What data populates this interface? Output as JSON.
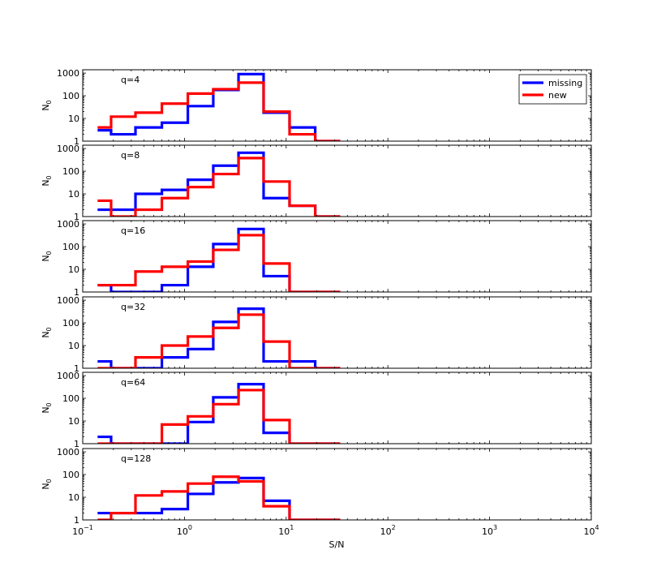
{
  "chart_data": {
    "type": "step-histogram",
    "xlabel": "S/N",
    "ylabel_base": "N",
    "ylabel_sub": "0",
    "xscale": "log",
    "yscale": "log",
    "xlim": [
      0.1,
      10000
    ],
    "ylim": [
      1,
      1400
    ],
    "x_ticks": [
      {
        "value": 0.1,
        "base": "10",
        "exp": "−1"
      },
      {
        "value": 1,
        "base": "10",
        "exp": "0"
      },
      {
        "value": 10,
        "base": "10",
        "exp": "1"
      },
      {
        "value": 100,
        "base": "10",
        "exp": "2"
      },
      {
        "value": 1000,
        "base": "10",
        "exp": "3"
      },
      {
        "value": 10000,
        "base": "10",
        "exp": "4"
      }
    ],
    "y_ticks": [
      {
        "value": 1,
        "label": "1"
      },
      {
        "value": 10,
        "label": "10"
      },
      {
        "value": 100,
        "label": "100"
      },
      {
        "value": 1000,
        "label": "1000"
      }
    ],
    "bin_edges": [
      0.14,
      0.19,
      0.33,
      0.6,
      1.08,
      1.92,
      3.4,
      6.0,
      10.8,
      19.3,
      34.0
    ],
    "legend": {
      "placement": "top-right",
      "entries": [
        {
          "name": "missing",
          "color": "#0000ff"
        },
        {
          "name": "new",
          "color": "#ff0000"
        }
      ]
    },
    "panels": [
      {
        "label": "q=4",
        "series": [
          {
            "name": "missing",
            "color": "#0000ff",
            "values": [
              3,
              2,
              4,
              6.5,
              35,
              180,
              900,
              18,
              4,
              1
            ]
          },
          {
            "name": "new",
            "color": "#ff0000",
            "values": [
              4,
              12,
              18,
              45,
              125,
              195,
              380,
              20,
              2,
              1
            ]
          }
        ]
      },
      {
        "label": "q=8",
        "series": [
          {
            "name": "missing",
            "color": "#0000ff",
            "values": [
              2,
              2,
              10,
              15,
              42,
              175,
              650,
              6.5,
              3,
              1
            ]
          },
          {
            "name": "new",
            "color": "#ff0000",
            "values": [
              5,
              1,
              2,
              6.5,
              20,
              75,
              380,
              35,
              3,
              1
            ]
          }
        ]
      },
      {
        "label": "q=16",
        "series": [
          {
            "name": "missing",
            "color": "#0000ff",
            "values": [
              2,
              1,
              1,
              2,
              13,
              130,
              600,
              5,
              1,
              1
            ]
          },
          {
            "name": "new",
            "color": "#ff0000",
            "values": [
              2,
              2,
              8,
              13,
              22,
              72,
              320,
              18,
              1,
              1
            ]
          }
        ]
      },
      {
        "label": "q=32",
        "series": [
          {
            "name": "missing",
            "color": "#0000ff",
            "values": [
              2,
              1,
              1,
              3,
              7,
              110,
              420,
              2,
              2,
              1
            ]
          },
          {
            "name": "new",
            "color": "#ff0000",
            "values": [
              1,
              1,
              3,
              10,
              25,
              60,
              230,
              15,
              1,
              1
            ]
          }
        ]
      },
      {
        "label": "q=64",
        "series": [
          {
            "name": "missing",
            "color": "#0000ff",
            "values": [
              2,
              1,
              1,
              1,
              9,
              110,
              420,
              3,
              1,
              1
            ]
          },
          {
            "name": "new",
            "color": "#ff0000",
            "values": [
              1,
              1,
              1,
              7,
              16,
              55,
              230,
              11,
              1,
              1
            ]
          }
        ]
      },
      {
        "label": "q=128",
        "series": [
          {
            "name": "missing",
            "color": "#0000ff",
            "values": [
              2,
              2,
              2,
              3,
              14,
              45,
              70,
              7,
              1,
              1
            ]
          },
          {
            "name": "new",
            "color": "#ff0000",
            "values": [
              1,
              2,
              12,
              18,
              40,
              80,
              50,
              4,
              1,
              1
            ]
          }
        ]
      }
    ]
  }
}
